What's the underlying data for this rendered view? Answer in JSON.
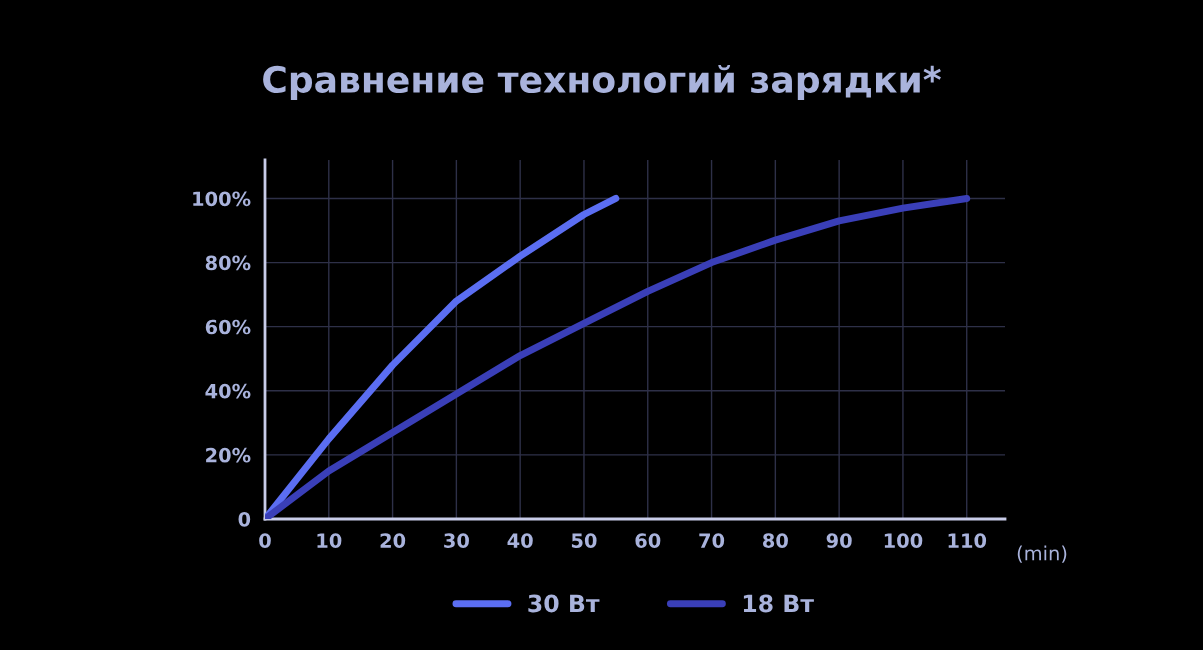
{
  "chart_data": {
    "type": "line",
    "title": "Сравнение технологий зарядки*",
    "xlabel": "(min)",
    "xlim": [
      0,
      116
    ],
    "ylim": [
      0,
      112
    ],
    "xticks": [
      0,
      10,
      20,
      30,
      40,
      50,
      60,
      70,
      80,
      90,
      100,
      110
    ],
    "yticks": [
      {
        "value": 0,
        "label": "0"
      },
      {
        "value": 20,
        "label": "20%"
      },
      {
        "value": 40,
        "label": "40%"
      },
      {
        "value": 60,
        "label": "60%"
      },
      {
        "value": 80,
        "label": "80%"
      },
      {
        "value": 100,
        "label": "100%"
      }
    ],
    "grid": true,
    "legend": "bottom",
    "marker": "none",
    "line_style": "solid",
    "series": [
      {
        "name": "30 Вт",
        "color": "#5b6ef2",
        "x": [
          0,
          10,
          20,
          30,
          40,
          50,
          55
        ],
        "values": [
          0,
          25,
          48,
          68,
          82,
          95,
          100
        ]
      },
      {
        "name": "18 Вт",
        "color": "#3a3fb8",
        "x": [
          0,
          10,
          20,
          30,
          40,
          50,
          60,
          70,
          80,
          90,
          100,
          110
        ],
        "values": [
          0,
          15,
          27,
          39,
          51,
          61,
          71,
          80,
          87,
          93,
          97,
          100
        ]
      }
    ]
  }
}
